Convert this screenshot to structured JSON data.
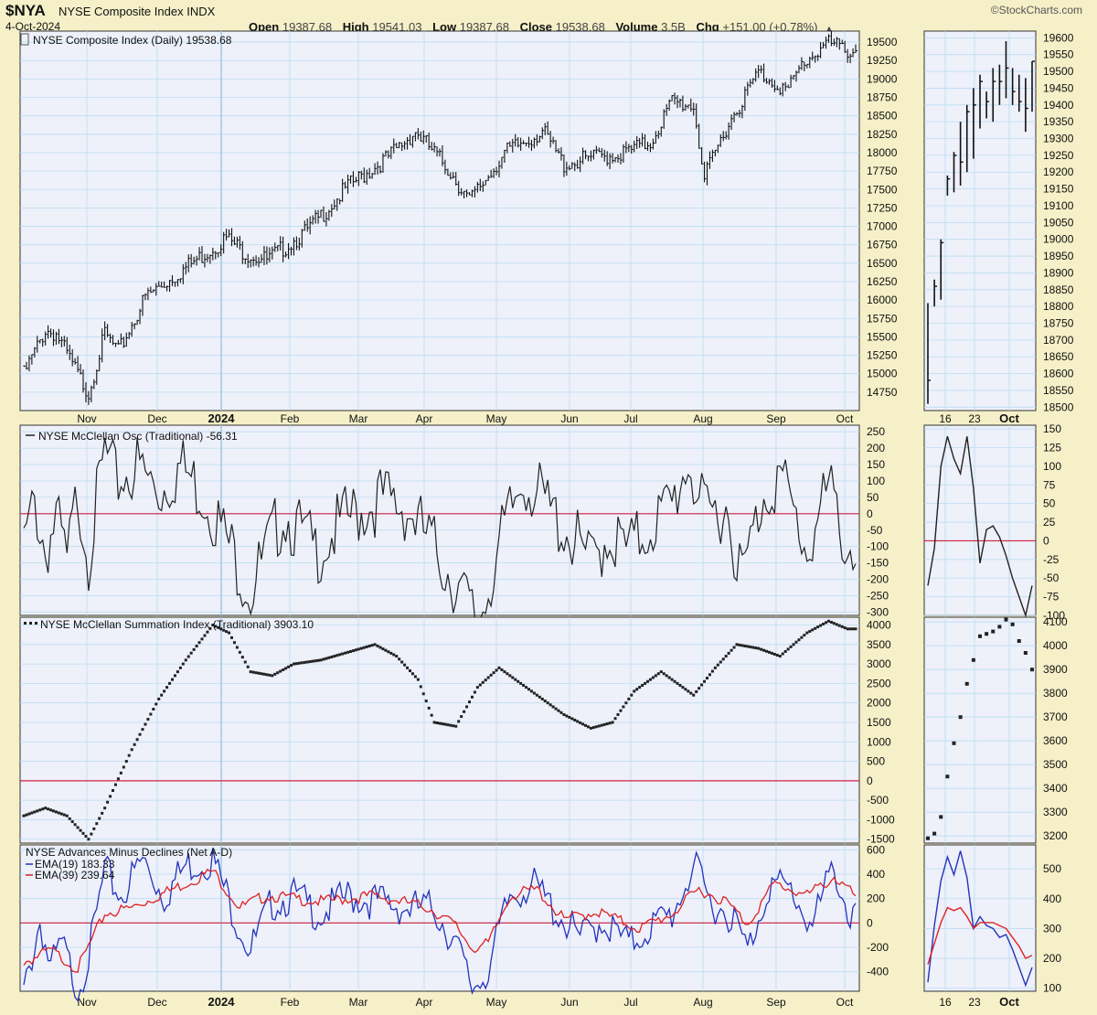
{
  "header": {
    "symbol": "$NYA",
    "name": "NYSE Composite Index",
    "exchange": "INDX",
    "date": "4-Oct-2024",
    "open_label": "Open",
    "open": "19387.68",
    "high_label": "High",
    "high": "19541.03",
    "low_label": "Low",
    "low": "19387.68",
    "close_label": "Close",
    "close": "19538.68",
    "volume_label": "Volume",
    "volume": "3.5B",
    "chg_label": "Chg",
    "chg": "+151.00 (+0.78%)",
    "brand": "©StockCharts.com"
  },
  "colors": {
    "background": "#f5f0c8",
    "panel": "#eef0fa",
    "grid": "#b9def0",
    "zero_line": "#d02040",
    "ema19": "#2233bb",
    "ema39": "#dd2222",
    "price": "#111111"
  },
  "chart_data": [
    {
      "type": "ohlc",
      "title": "NYSE Composite Index (Daily) 19538.68",
      "ylim": [
        14500,
        19650
      ],
      "yticks": [
        14750,
        15000,
        15250,
        15500,
        15750,
        16000,
        16250,
        16500,
        16750,
        17000,
        17250,
        17500,
        17750,
        18000,
        18250,
        18500,
        18750,
        19000,
        19250,
        19500
      ],
      "xticks": [
        "Nov",
        "Dec",
        "2024",
        "Feb",
        "Mar",
        "Apr",
        "May",
        "Jun",
        "Jul",
        "Aug",
        "Sep",
        "Oct"
      ],
      "anchors": [
        [
          0,
          15050
        ],
        [
          8,
          15650
        ],
        [
          12,
          15600
        ],
        [
          20,
          15050
        ],
        [
          24,
          14800
        ],
        [
          30,
          15600
        ],
        [
          35,
          15350
        ],
        [
          45,
          16100
        ],
        [
          60,
          16500
        ],
        [
          75,
          16900
        ],
        [
          82,
          16700
        ],
        [
          90,
          16600
        ],
        [
          105,
          17000
        ],
        [
          120,
          17600
        ],
        [
          135,
          18000
        ],
        [
          145,
          18350
        ],
        [
          158,
          17800
        ],
        [
          165,
          17400
        ],
        [
          178,
          18050
        ],
        [
          192,
          18350
        ],
        [
          200,
          17900
        ],
        [
          212,
          18000
        ],
        [
          222,
          18050
        ],
        [
          232,
          18200
        ],
        [
          240,
          18750
        ],
        [
          248,
          18700
        ],
        [
          252,
          17700
        ],
        [
          260,
          18400
        ],
        [
          272,
          19150
        ],
        [
          283,
          18900
        ],
        [
          288,
          19250
        ],
        [
          297,
          19550
        ],
        [
          305,
          19450
        ]
      ]
    },
    {
      "type": "ohlc",
      "ylim": [
        18490,
        19620
      ],
      "yticks": [
        18500,
        18550,
        18600,
        18650,
        18700,
        18750,
        18800,
        18850,
        18900,
        18950,
        19000,
        19050,
        19100,
        19150,
        19200,
        19250,
        19300,
        19350,
        19400,
        19450,
        19500,
        19550,
        19600
      ],
      "xticks": [
        "16",
        "23",
        "Oct"
      ],
      "bars": [
        [
          18810,
          18510,
          18580
        ],
        [
          18880,
          18800,
          18860
        ],
        [
          19000,
          18820,
          18990
        ],
        [
          19190,
          19130,
          19180
        ],
        [
          19260,
          19140,
          19250
        ],
        [
          19350,
          19160,
          19230
        ],
        [
          19400,
          19200,
          19380
        ],
        [
          19450,
          19240,
          19400
        ],
        [
          19490,
          19330,
          19470
        ],
        [
          19440,
          19360,
          19410
        ],
        [
          19510,
          19350,
          19470
        ],
        [
          19520,
          19400,
          19470
        ],
        [
          19590,
          19420,
          19510
        ],
        [
          19510,
          19400,
          19440
        ],
        [
          19490,
          19380,
          19410
        ],
        [
          19480,
          19320,
          19390
        ],
        [
          19530,
          19380,
          19530
        ]
      ]
    },
    {
      "type": "line",
      "title": "NYSE McClellan Osc (Traditional) -56.31",
      "ylim": [
        -310,
        270
      ],
      "yticks": [
        -300,
        -250,
        -200,
        -150,
        -100,
        -50,
        0,
        50,
        100,
        150,
        200,
        250
      ],
      "anchors": [
        [
          0,
          -50
        ],
        [
          4,
          90
        ],
        [
          8,
          -60
        ],
        [
          12,
          40
        ],
        [
          16,
          -100
        ],
        [
          20,
          120
        ],
        [
          24,
          -70
        ],
        [
          30,
          240
        ],
        [
          34,
          150
        ],
        [
          42,
          200
        ],
        [
          50,
          120
        ],
        [
          58,
          200
        ],
        [
          68,
          100
        ],
        [
          76,
          -40
        ],
        [
          84,
          -180
        ],
        [
          96,
          60
        ],
        [
          108,
          -60
        ],
        [
          120,
          40
        ],
        [
          132,
          100
        ],
        [
          142,
          70
        ],
        [
          152,
          -50
        ],
        [
          160,
          -160
        ],
        [
          168,
          -280
        ],
        [
          176,
          -50
        ],
        [
          185,
          170
        ],
        [
          195,
          60
        ],
        [
          205,
          -40
        ],
        [
          210,
          -100
        ],
        [
          216,
          -10
        ],
        [
          224,
          -60
        ],
        [
          232,
          20
        ],
        [
          240,
          80
        ],
        [
          246,
          220
        ],
        [
          252,
          40
        ],
        [
          260,
          80
        ],
        [
          266,
          -140
        ],
        [
          274,
          120
        ],
        [
          280,
          170
        ],
        [
          290,
          -60
        ],
        [
          298,
          130
        ],
        [
          305,
          -50
        ],
        [
          308,
          -56
        ]
      ]
    },
    {
      "type": "line",
      "ylim": [
        -100,
        155
      ],
      "yticks": [
        -100,
        -75,
        -50,
        -25,
        0,
        25,
        50,
        75,
        100,
        125,
        150
      ],
      "values": [
        -60,
        -10,
        100,
        140,
        110,
        90,
        140,
        70,
        -30,
        15,
        20,
        5,
        -20,
        -50,
        -75,
        -100,
        -60
      ]
    },
    {
      "type": "scatter",
      "title": "NYSE McClellan Summation Index (Traditional) 3903.10",
      "ylim": [
        -1600,
        4200
      ],
      "yticks": [
        -1500,
        -1000,
        -500,
        0,
        500,
        1000,
        1500,
        2000,
        2500,
        3000,
        3500,
        4000
      ],
      "anchors": [
        [
          0,
          -900
        ],
        [
          8,
          -700
        ],
        [
          16,
          -900
        ],
        [
          24,
          -1500
        ],
        [
          30,
          -700
        ],
        [
          40,
          800
        ],
        [
          50,
          2100
        ],
        [
          60,
          3100
        ],
        [
          70,
          4000
        ],
        [
          76,
          3800
        ],
        [
          84,
          2800
        ],
        [
          92,
          2700
        ],
        [
          100,
          3000
        ],
        [
          110,
          3100
        ],
        [
          120,
          3300
        ],
        [
          130,
          3500
        ],
        [
          138,
          3200
        ],
        [
          146,
          2600
        ],
        [
          152,
          1500
        ],
        [
          160,
          1400
        ],
        [
          168,
          2400
        ],
        [
          176,
          2900
        ],
        [
          182,
          2600
        ],
        [
          190,
          2200
        ],
        [
          200,
          1700
        ],
        [
          210,
          1350
        ],
        [
          218,
          1500
        ],
        [
          226,
          2300
        ],
        [
          236,
          2800
        ],
        [
          242,
          2500
        ],
        [
          248,
          2200
        ],
        [
          256,
          2900
        ],
        [
          264,
          3500
        ],
        [
          272,
          3400
        ],
        [
          280,
          3200
        ],
        [
          290,
          3800
        ],
        [
          298,
          4100
        ],
        [
          305,
          3900
        ]
      ]
    },
    {
      "type": "scatter",
      "ylim": [
        3170,
        4120
      ],
      "yticks": [
        3200,
        3300,
        3400,
        3500,
        3600,
        3700,
        3800,
        3900,
        4000,
        4100
      ],
      "values": [
        3190,
        3210,
        3280,
        3450,
        3590,
        3700,
        3840,
        3940,
        4040,
        4050,
        4060,
        4080,
        4110,
        4090,
        4020,
        3970,
        3900
      ]
    },
    {
      "type": "line",
      "title": "NYSE Advances Minus Declines (Net A-D)",
      "ylim": [
        -560,
        640
      ],
      "yticks": [
        -400,
        -200,
        0,
        200,
        400,
        600
      ],
      "series": [
        {
          "name": "EMA(19)",
          "label": "EMA(19) 183.33",
          "anchors": [
            [
              0,
              -500
            ],
            [
              6,
              100
            ],
            [
              10,
              -300
            ],
            [
              14,
              -100
            ],
            [
              20,
              -450
            ],
            [
              24,
              -200
            ],
            [
              30,
              500
            ],
            [
              36,
              300
            ],
            [
              44,
              600
            ],
            [
              52,
              300
            ],
            [
              60,
              550
            ],
            [
              70,
              600
            ],
            [
              78,
              150
            ],
            [
              84,
              -150
            ],
            [
              92,
              250
            ],
            [
              100,
              300
            ],
            [
              110,
              150
            ],
            [
              120,
              300
            ],
            [
              132,
              250
            ],
            [
              142,
              200
            ],
            [
              152,
              200
            ],
            [
              160,
              -100
            ],
            [
              166,
              -450
            ],
            [
              172,
              -300
            ],
            [
              180,
              300
            ],
            [
              188,
              400
            ],
            [
              198,
              150
            ],
            [
              206,
              -50
            ],
            [
              214,
              100
            ],
            [
              224,
              -100
            ],
            [
              232,
              50
            ],
            [
              240,
              150
            ],
            [
              248,
              550
            ],
            [
              254,
              250
            ],
            [
              262,
              150
            ],
            [
              268,
              -150
            ],
            [
              276,
              400
            ],
            [
              284,
              350
            ],
            [
              292,
              50
            ],
            [
              300,
              550
            ],
            [
              306,
              100
            ],
            [
              308,
              183
            ]
          ]
        },
        {
          "name": "EMA(39)",
          "label": "EMA(39) 239.64",
          "anchors": [
            [
              0,
              -300
            ],
            [
              10,
              -200
            ],
            [
              20,
              -350
            ],
            [
              30,
              100
            ],
            [
              40,
              150
            ],
            [
              55,
              300
            ],
            [
              70,
              450
            ],
            [
              80,
              150
            ],
            [
              90,
              250
            ],
            [
              110,
              200
            ],
            [
              130,
              250
            ],
            [
              150,
              150
            ],
            [
              160,
              0
            ],
            [
              166,
              -180
            ],
            [
              172,
              -150
            ],
            [
              180,
              250
            ],
            [
              190,
              300
            ],
            [
              200,
              50
            ],
            [
              212,
              120
            ],
            [
              228,
              -20
            ],
            [
              240,
              100
            ],
            [
              250,
              300
            ],
            [
              260,
              200
            ],
            [
              268,
              20
            ],
            [
              278,
              350
            ],
            [
              290,
              250
            ],
            [
              300,
              400
            ],
            [
              308,
              240
            ]
          ]
        }
      ]
    },
    {
      "type": "line",
      "ylim": [
        90,
        580
      ],
      "yticks": [
        100,
        200,
        300,
        400,
        500
      ],
      "series": [
        {
          "name": "EMA(19)",
          "values": [
            120,
            310,
            460,
            540,
            480,
            560,
            470,
            300,
            340,
            310,
            300,
            270,
            280,
            230,
            170,
            110,
            170
          ]
        },
        {
          "name": "EMA(39)",
          "values": [
            180,
            250,
            320,
            370,
            360,
            370,
            340,
            300,
            320,
            320,
            320,
            310,
            300,
            270,
            240,
            200,
            210
          ]
        }
      ]
    }
  ]
}
